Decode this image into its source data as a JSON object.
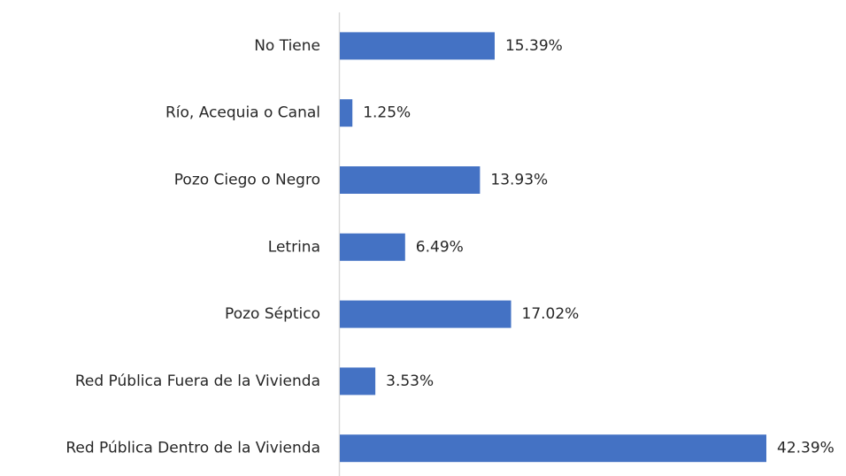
{
  "chart_data": {
    "type": "bar",
    "orientation": "horizontal",
    "categories": [
      "No Tiene",
      "Río, Acequia o Canal",
      "Pozo Ciego o Negro",
      "Letrina",
      "Pozo Séptico",
      "Red Pública Fuera de la Vivienda",
      "Red Pública Dentro de la Vivienda"
    ],
    "values": [
      15.39,
      1.25,
      13.93,
      6.49,
      17.02,
      3.53,
      42.39
    ],
    "value_labels": [
      "15.39%",
      "1.25%",
      "13.93%",
      "6.49%",
      "17.02%",
      "3.53%",
      "42.39%"
    ],
    "color": "#4472c4"
  }
}
